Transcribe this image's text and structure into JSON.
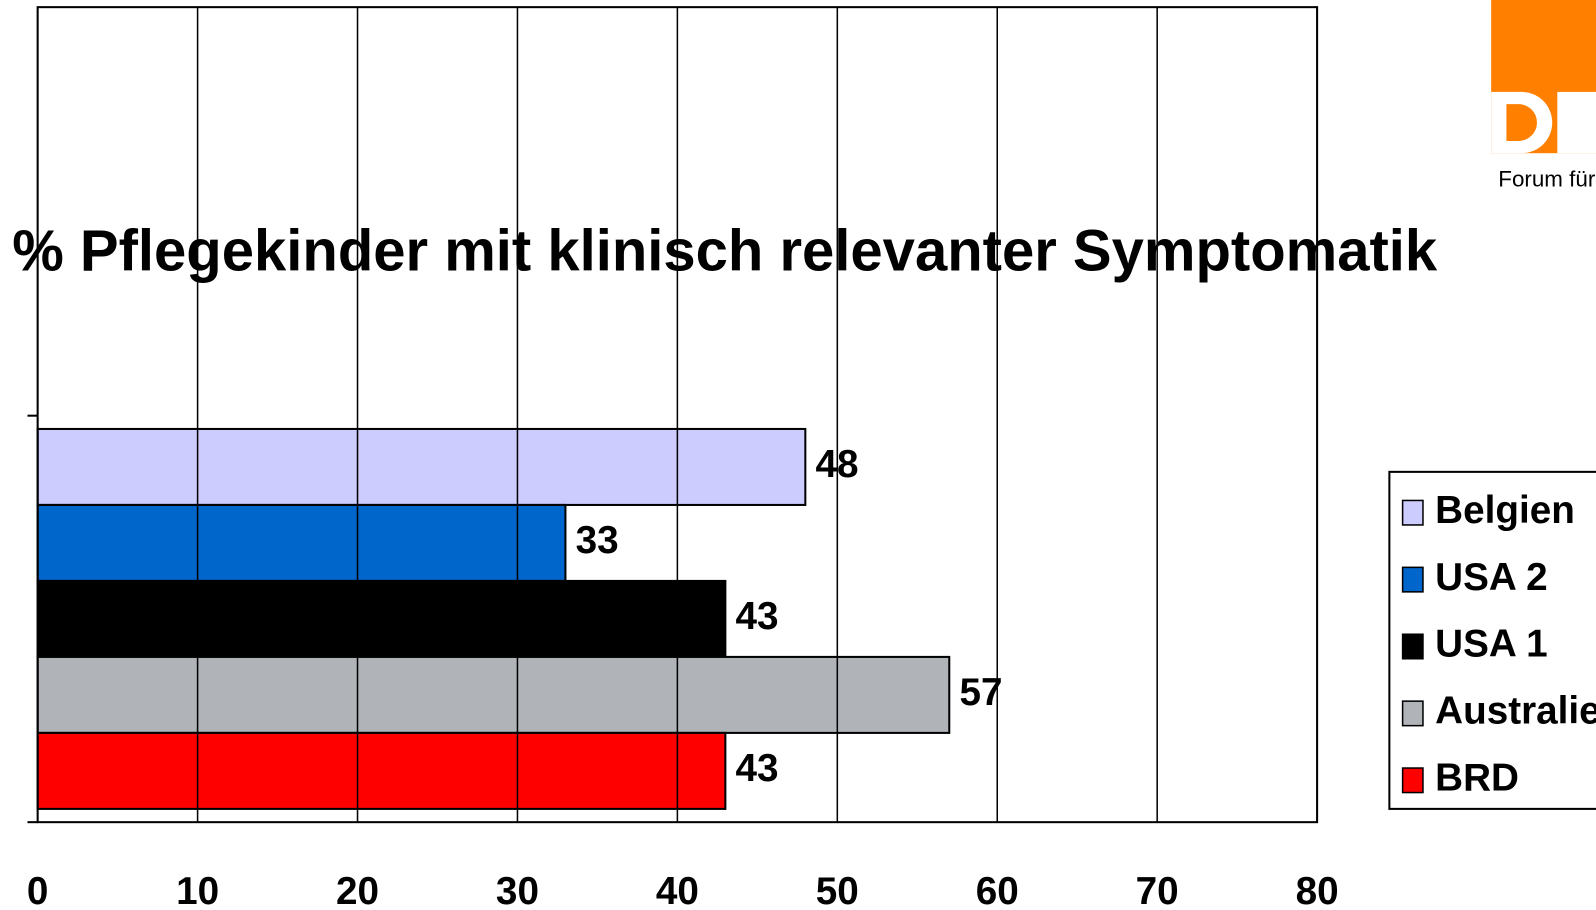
{
  "chart_data": {
    "type": "bar",
    "orientation": "horizontal",
    "title": "% Pflegekinder mit klinisch relevanter Symptomatik",
    "logo_text": "Forum für",
    "categories": [
      null
    ],
    "series": [
      {
        "name": "Belgien",
        "color": "#ccccff",
        "values": [
          48
        ]
      },
      {
        "name": "USA 2",
        "color": "#0066cc",
        "values": [
          33
        ]
      },
      {
        "name": "USA 1",
        "color": "#000000",
        "values": [
          43
        ]
      },
      {
        "name": "Australien",
        "color": "#b0b4b8",
        "values": [
          57
        ]
      },
      {
        "name": "BRD",
        "color": "#ff0000",
        "values": [
          43
        ]
      }
    ],
    "xlim": [
      0,
      80
    ],
    "xticks": [
      0,
      10,
      20,
      30,
      40,
      50,
      60,
      70,
      80
    ],
    "grid": true,
    "legend": "right"
  }
}
